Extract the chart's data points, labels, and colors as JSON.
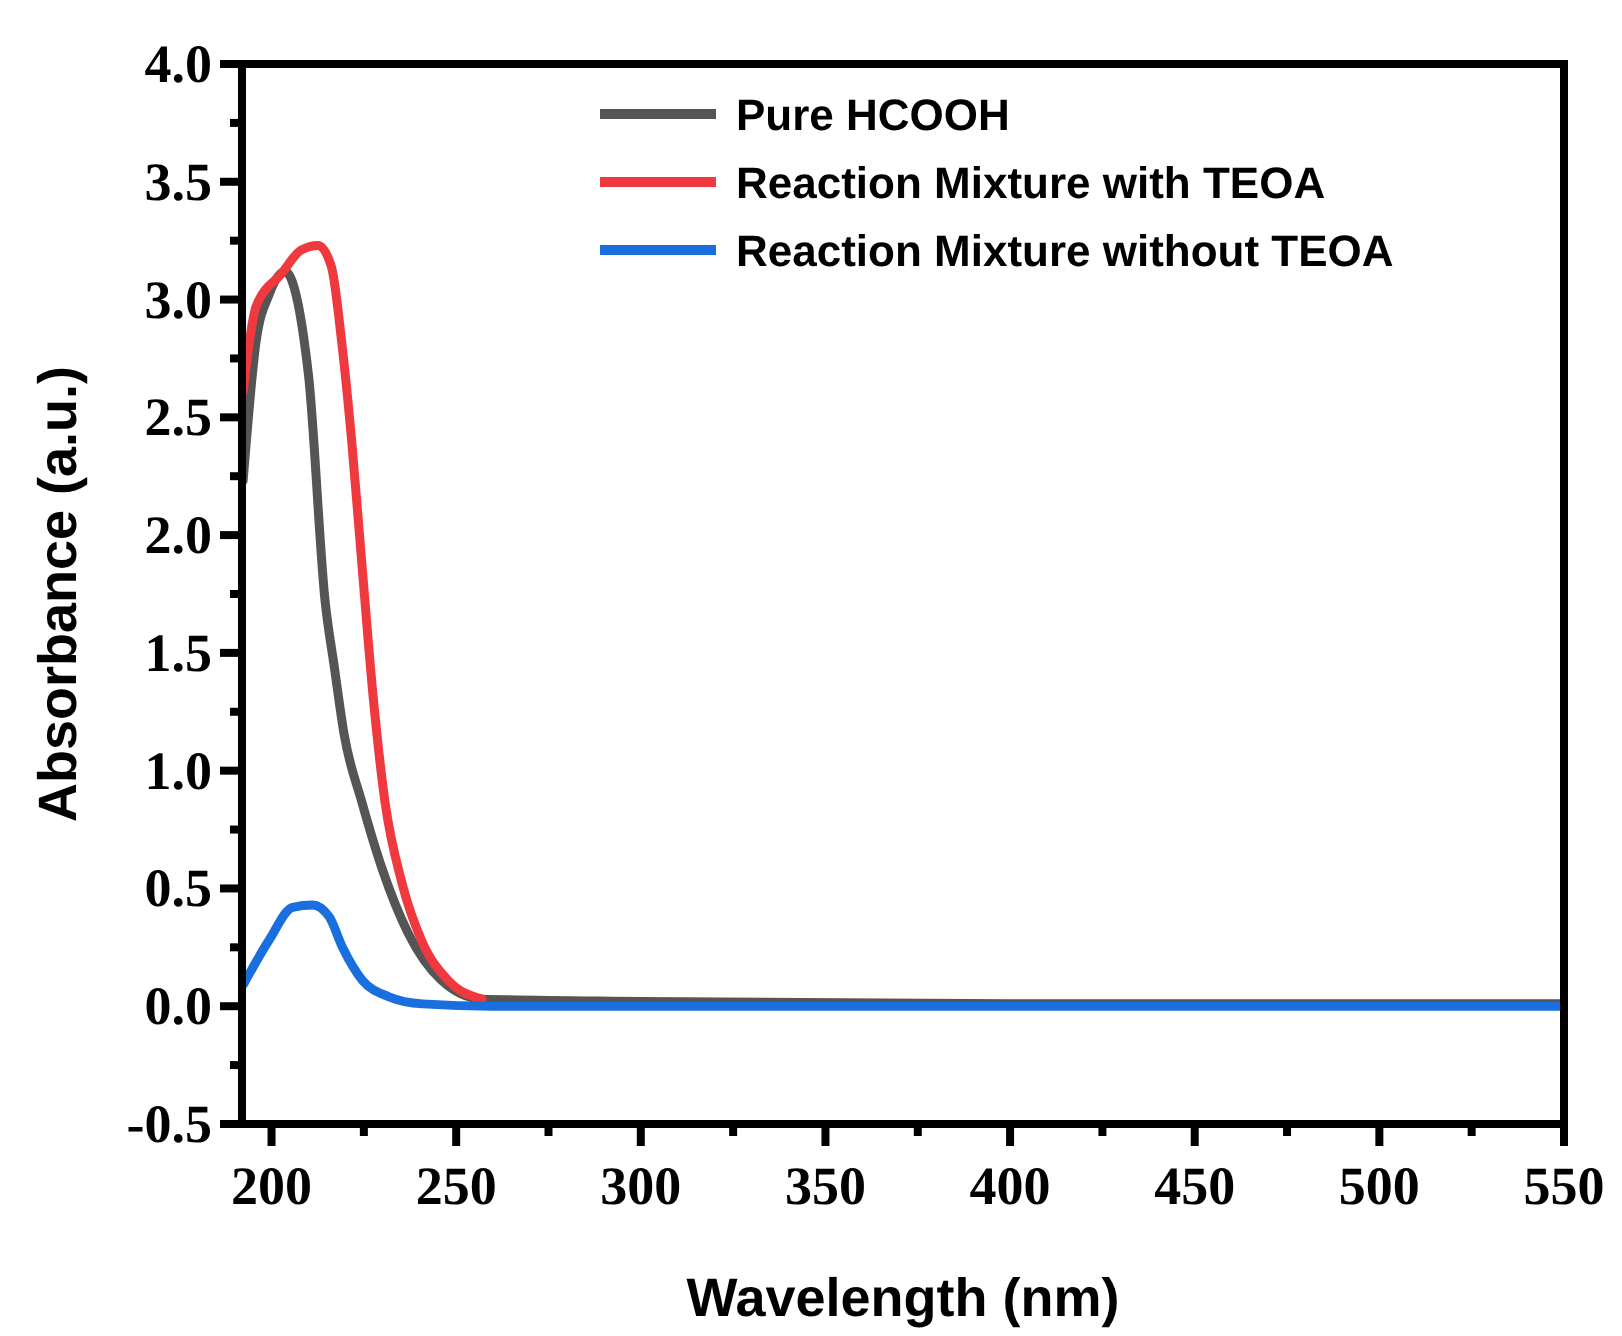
{
  "chart_data": {
    "type": "line",
    "xlabel": "Wavelength (nm)",
    "ylabel": "Absorbance (a.u.)",
    "xlim": [
      192,
      550
    ],
    "ylim": [
      -0.5,
      4.0
    ],
    "xticks": [
      200,
      {
        "value": 225,
        "label": null
      },
      250,
      {
        "value": 275,
        "label": null
      },
      300,
      {
        "value": 325,
        "label": null
      },
      350,
      {
        "value": 375,
        "label": null
      },
      400,
      {
        "value": 425,
        "label": null
      },
      450,
      {
        "value": 475,
        "label": null
      },
      500,
      {
        "value": 525,
        "label": null
      },
      550
    ],
    "yticks": [
      {
        "value": -0.5,
        "label": "-0.5"
      },
      {
        "value": -0.25,
        "label": null
      },
      {
        "value": 0,
        "label": "0.0"
      },
      {
        "value": 0.25,
        "label": null
      },
      {
        "value": 0.5,
        "label": "0.5"
      },
      {
        "value": 0.75,
        "label": null
      },
      {
        "value": 1.0,
        "label": "1.0"
      },
      {
        "value": 1.25,
        "label": null
      },
      {
        "value": 1.5,
        "label": "1.5"
      },
      {
        "value": 1.75,
        "label": null
      },
      {
        "value": 2.0,
        "label": "2.0"
      },
      {
        "value": 2.25,
        "label": null
      },
      {
        "value": 2.5,
        "label": "2.5"
      },
      {
        "value": 2.75,
        "label": null
      },
      {
        "value": 3.0,
        "label": "3.0"
      },
      {
        "value": 3.25,
        "label": null
      },
      {
        "value": 3.5,
        "label": "3.5"
      },
      {
        "value": 3.75,
        "label": null
      },
      {
        "value": 4.0,
        "label": "4.0"
      }
    ],
    "grid": false,
    "legend": "top right",
    "marker": "none",
    "line_style": "solid",
    "series": [
      {
        "name": "Pure HCOOH",
        "color": "#555555",
        "x": [
          192.3,
          195.8,
          199.3,
          203.6,
          210,
          214.5,
          217,
          219.7,
          224.4,
          229.8,
          237,
          246,
          257,
          300,
          400,
          550
        ],
        "values": [
          2.23,
          2.82,
          3.02,
          3.12,
          2.68,
          1.72,
          1.44,
          1.15,
          0.87,
          0.59,
          0.31,
          0.11,
          0.03,
          0.02,
          0.01,
          0.01
        ]
      },
      {
        "name": "Reaction Mixture with TEOA",
        "color": "#f0393f",
        "x": [
          192.3,
          195.8,
          202.7,
          208,
          212.6,
          216.2,
          219,
          221.7,
          224.4,
          227.6,
          230.7,
          235.2,
          240.6,
          247.8,
          257
        ],
        "values": [
          2.61,
          2.97,
          3.11,
          3.21,
          3.23,
          3.14,
          2.82,
          2.4,
          1.89,
          1.3,
          0.87,
          0.53,
          0.28,
          0.11,
          0.03
        ]
      },
      {
        "name": "Reaction Mixture without TEOA",
        "color": "#1a6fdf",
        "x": [
          192.3,
          199.3,
          205.7,
          211.1,
          215.6,
          219.2,
          224.6,
          231.8,
          240.9,
          260,
          300,
          400,
          550
        ],
        "values": [
          0.09,
          0.28,
          0.42,
          0.43,
          0.38,
          0.25,
          0.11,
          0.04,
          0.01,
          0.0,
          0.0,
          0.0,
          0.0
        ]
      }
    ]
  }
}
